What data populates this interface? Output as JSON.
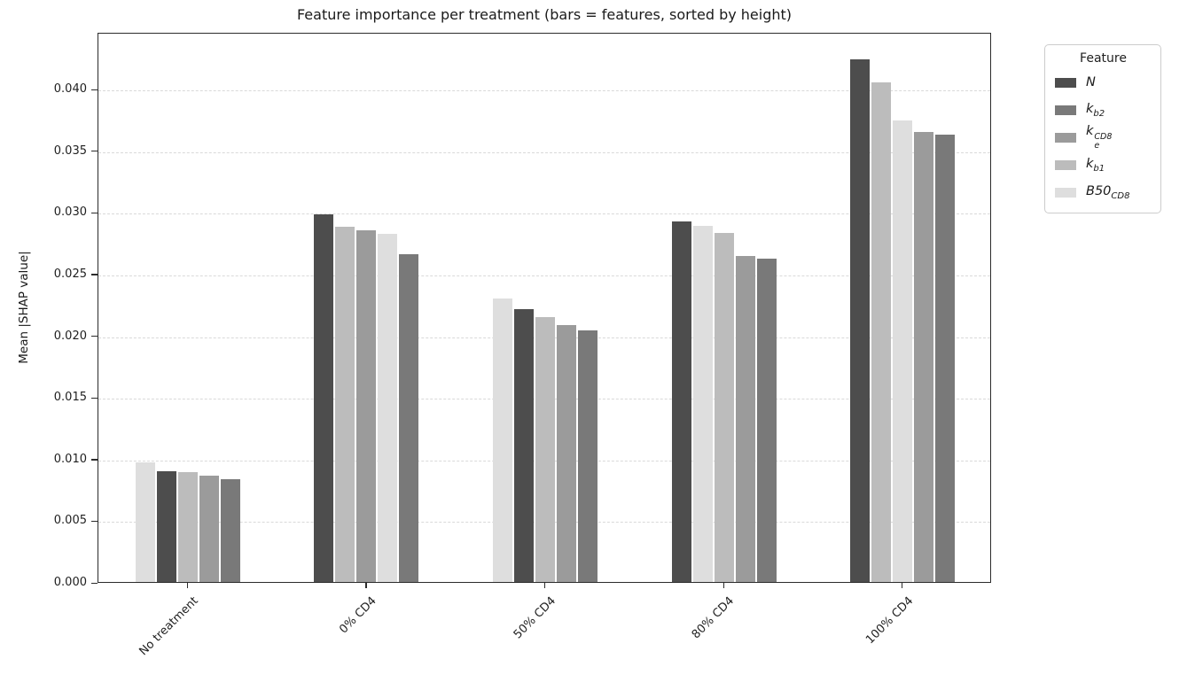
{
  "chart_data": {
    "type": "bar",
    "title": "Feature importance per treatment (bars = features, sorted by height)",
    "ylabel": "Mean |SHAP value|",
    "xlabel": "",
    "categories": [
      "No treatment",
      "0% CD4",
      "50% CD4",
      "80% CD4",
      "100% CD4"
    ],
    "ylim": [
      0,
      0.0446
    ],
    "yticks": [
      0.0,
      0.005,
      0.01,
      0.015,
      0.02,
      0.025,
      0.03,
      0.035,
      0.04
    ],
    "ytick_labels": [
      "0.000",
      "0.005",
      "0.010",
      "0.015",
      "0.020",
      "0.025",
      "0.030",
      "0.035",
      "0.040"
    ],
    "grid": {
      "axis": "y",
      "style": "dashed",
      "color": "#d9d9d9"
    },
    "legend": {
      "title": "Feature",
      "position": "outside-upper-right"
    },
    "features": [
      {
        "id": "N",
        "color": "#4d4d4d",
        "label": {
          "base": "N"
        }
      },
      {
        "id": "k_b2",
        "color": "#797979",
        "label": {
          "base": "k",
          "sub": "b2"
        }
      },
      {
        "id": "k_e_CD8",
        "color": "#9b9b9b",
        "label": {
          "base": "k",
          "sub": "e",
          "sup": "CD8"
        }
      },
      {
        "id": "k_b1",
        "color": "#bcbcbc",
        "label": {
          "base": "k",
          "sub": "b1"
        }
      },
      {
        "id": "B50_CD8",
        "color": "#dedede",
        "label": {
          "base": "B50",
          "sub": "CD8"
        }
      }
    ],
    "groups": [
      {
        "category": "No treatment",
        "bars": [
          {
            "feature": "B50_CD8",
            "value": 0.0097
          },
          {
            "feature": "N",
            "value": 0.009
          },
          {
            "feature": "k_b1",
            "value": 0.0089
          },
          {
            "feature": "k_e_CD8",
            "value": 0.0086
          },
          {
            "feature": "k_b2",
            "value": 0.0083
          }
        ]
      },
      {
        "category": "0% CD4",
        "bars": [
          {
            "feature": "N",
            "value": 0.0298
          },
          {
            "feature": "k_b1",
            "value": 0.0288
          },
          {
            "feature": "k_e_CD8",
            "value": 0.0285
          },
          {
            "feature": "B50_CD8",
            "value": 0.0282
          },
          {
            "feature": "k_b2",
            "value": 0.0266
          }
        ]
      },
      {
        "category": "50% CD4",
        "bars": [
          {
            "feature": "B50_CD8",
            "value": 0.023
          },
          {
            "feature": "N",
            "value": 0.0221
          },
          {
            "feature": "k_b1",
            "value": 0.0215
          },
          {
            "feature": "k_e_CD8",
            "value": 0.0208
          },
          {
            "feature": "k_b2",
            "value": 0.0204
          }
        ]
      },
      {
        "category": "80% CD4",
        "bars": [
          {
            "feature": "N",
            "value": 0.0292
          },
          {
            "feature": "B50_CD8",
            "value": 0.0289
          },
          {
            "feature": "k_b1",
            "value": 0.0283
          },
          {
            "feature": "k_e_CD8",
            "value": 0.0264
          },
          {
            "feature": "k_b2",
            "value": 0.0262
          }
        ]
      },
      {
        "category": "100% CD4",
        "bars": [
          {
            "feature": "N",
            "value": 0.0424
          },
          {
            "feature": "k_b1",
            "value": 0.0405
          },
          {
            "feature": "B50_CD8",
            "value": 0.0374
          },
          {
            "feature": "k_e_CD8",
            "value": 0.0365
          },
          {
            "feature": "k_b2",
            "value": 0.0363
          }
        ]
      }
    ]
  }
}
